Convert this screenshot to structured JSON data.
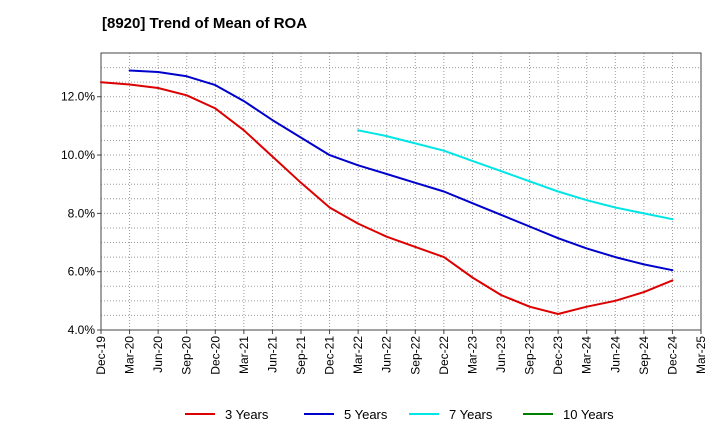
{
  "chart_data": {
    "type": "line",
    "title": "[8920]  Trend of Mean of ROA",
    "xlabel": "",
    "ylabel": "",
    "ylim": [
      4.0,
      13.5
    ],
    "yticks": [
      4.0,
      6.0,
      8.0,
      10.0,
      12.0
    ],
    "ytick_labels": [
      "4.0%",
      "6.0%",
      "8.0%",
      "10.0%",
      "12.0%"
    ],
    "categories": [
      "Dec-19",
      "Mar-20",
      "Jun-20",
      "Sep-20",
      "Dec-20",
      "Mar-21",
      "Jun-21",
      "Sep-21",
      "Dec-21",
      "Mar-22",
      "Jun-22",
      "Sep-22",
      "Dec-22",
      "Mar-23",
      "Jun-23",
      "Sep-23",
      "Dec-23",
      "Mar-24",
      "Jun-24",
      "Sep-24",
      "Dec-24",
      "Mar-25"
    ],
    "grid": true,
    "legend_position": "bottom",
    "series": [
      {
        "name": "3 Years",
        "color": "#dd0000",
        "values": [
          12.5,
          12.42,
          12.3,
          12.05,
          11.6,
          10.85,
          9.95,
          9.05,
          8.2,
          7.65,
          7.2,
          6.85,
          6.5,
          5.8,
          5.2,
          4.8,
          4.55,
          4.8,
          5.0,
          5.3,
          5.7,
          null
        ]
      },
      {
        "name": "5 Years",
        "color": "#0000cc",
        "values": [
          null,
          12.9,
          12.85,
          12.7,
          12.4,
          11.85,
          11.2,
          10.6,
          10.0,
          9.65,
          9.35,
          9.05,
          8.75,
          8.35,
          7.95,
          7.55,
          7.15,
          6.8,
          6.5,
          6.25,
          6.05,
          null
        ]
      },
      {
        "name": "7 Years",
        "color": "#00e5e5",
        "values": [
          null,
          null,
          null,
          null,
          null,
          null,
          null,
          null,
          null,
          10.85,
          10.65,
          10.4,
          10.15,
          9.8,
          9.45,
          9.1,
          8.75,
          8.45,
          8.2,
          8.0,
          7.8,
          null
        ]
      },
      {
        "name": "10 Years",
        "color": "#008000",
        "values": [
          null,
          null,
          null,
          null,
          null,
          null,
          null,
          null,
          null,
          null,
          null,
          null,
          null,
          null,
          null,
          null,
          null,
          null,
          null,
          null,
          null,
          null
        ]
      }
    ]
  }
}
